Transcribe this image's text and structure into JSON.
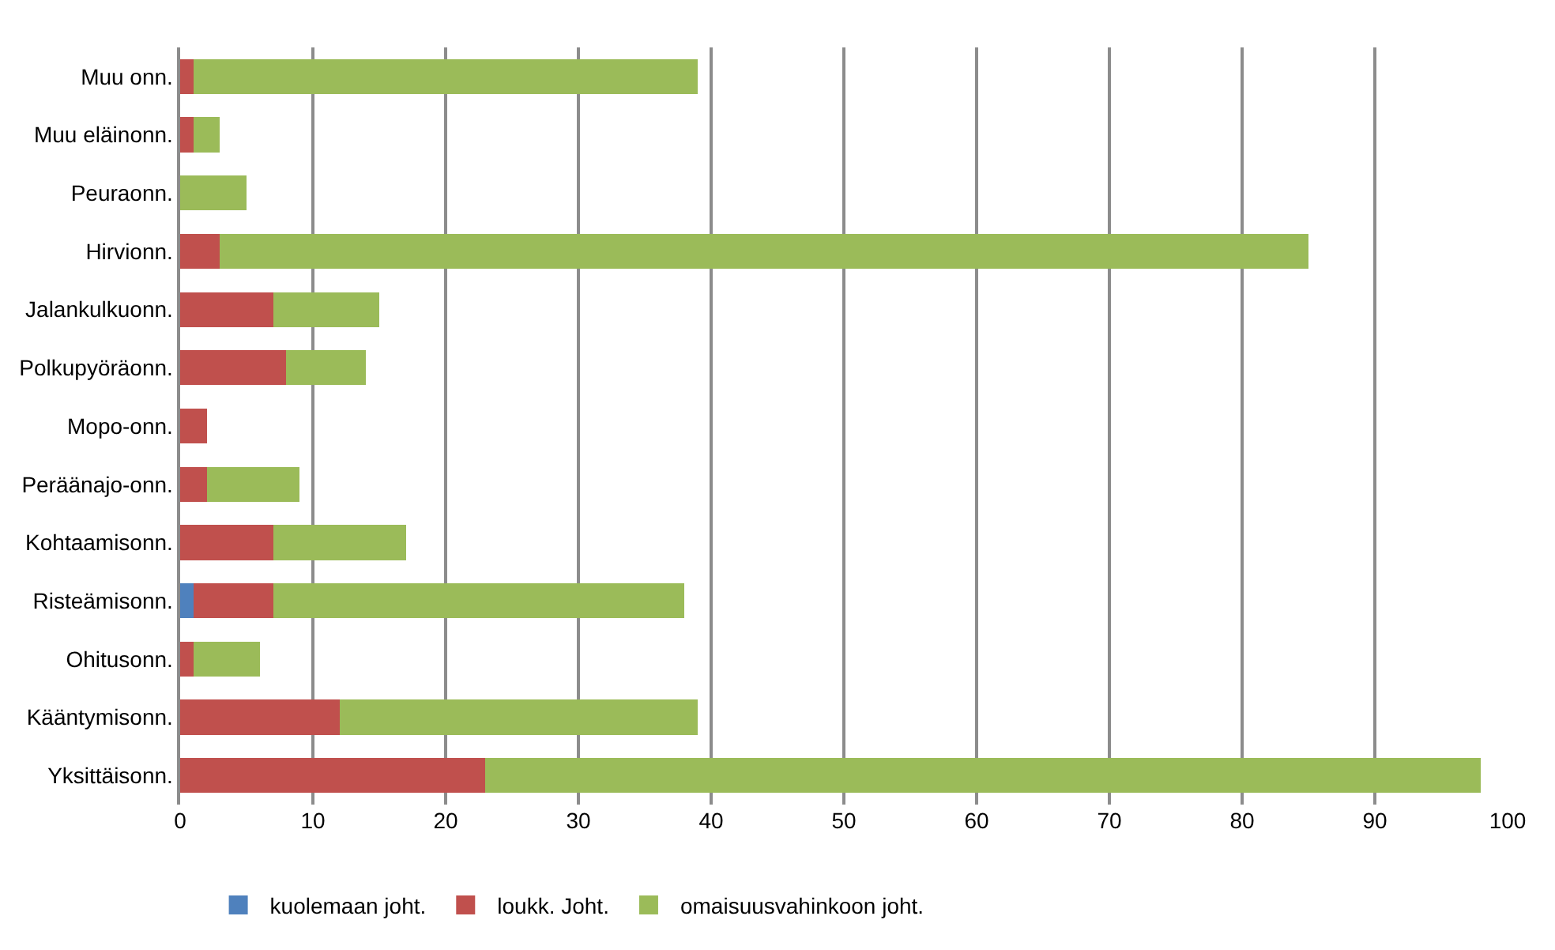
{
  "chart_data": {
    "type": "bar",
    "orientation": "horizontal",
    "stacked": true,
    "categories": [
      "Muu onn.",
      "Muu eläinonn.",
      "Peuraonn.",
      "Hirvionn.",
      "Jalankulkuonn.",
      "Polkupyöräonn.",
      "Mopo-onn.",
      "Peräänajo-onn.",
      "Kohtaamisonn.",
      "Risteämisonn.",
      "Ohitusonn.",
      "Kääntymisonn.",
      "Yksittäisonn."
    ],
    "series": [
      {
        "name": "kuolemaan joht.",
        "color": "#4f81bd",
        "values": [
          0,
          0,
          0,
          0,
          0,
          0,
          0,
          0,
          0,
          1,
          0,
          0,
          0
        ]
      },
      {
        "name": "loukk. Joht.",
        "color": "#c0504d",
        "values": [
          1,
          1,
          0,
          3,
          7,
          8,
          2,
          2,
          7,
          6,
          1,
          12,
          23
        ]
      },
      {
        "name": "omaisuusvahinkoon joht.",
        "color": "#9bbb59",
        "values": [
          38,
          2,
          5,
          82,
          8,
          6,
          0,
          7,
          10,
          31,
          5,
          27,
          75
        ]
      }
    ],
    "xlim": [
      0,
      100
    ],
    "xticks": [
      0,
      10,
      20,
      30,
      40,
      50,
      60,
      70,
      80,
      90,
      100
    ],
    "grid": "x",
    "legend": "bottom"
  }
}
